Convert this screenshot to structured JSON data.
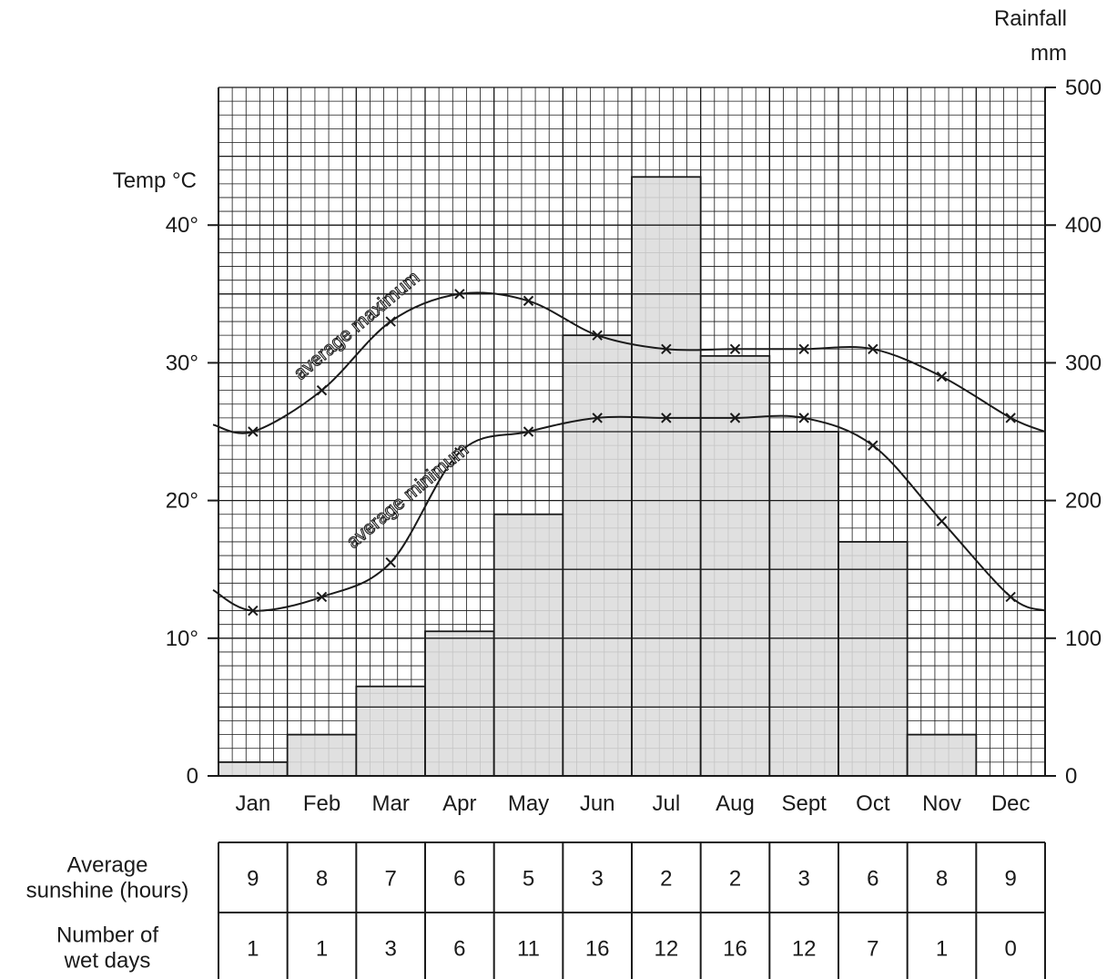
{
  "chart_data": {
    "type": "bar",
    "categories": [
      "Jan",
      "Feb",
      "Mar",
      "Apr",
      "May",
      "Jun",
      "Jul",
      "Aug",
      "Sept",
      "Oct",
      "Nov",
      "Dec"
    ],
    "rainfall": {
      "axis_title_line1": "Rainfall",
      "axis_title_line2": "mm",
      "ylim": [
        0,
        500
      ],
      "ticks": [
        "0",
        "100",
        "200",
        "300",
        "400",
        "500"
      ],
      "values": [
        10,
        30,
        65,
        105,
        190,
        320,
        435,
        305,
        250,
        170,
        30,
        0
      ],
      "fill": "#dcdcdc"
    },
    "temperature": {
      "axis_title": "Temp °C",
      "ylim": [
        0,
        50
      ],
      "ticks": [
        "0",
        "10°",
        "20°",
        "30°",
        "40°"
      ],
      "series": [
        {
          "name": "average maximum",
          "values": [
            25,
            28,
            33,
            35,
            34.5,
            32,
            31,
            31,
            31,
            31,
            29,
            26
          ]
        },
        {
          "name": "average minimum",
          "values": [
            12,
            13,
            15.5,
            23.5,
            25,
            26,
            26,
            26,
            26,
            24,
            18.5,
            13
          ]
        }
      ]
    },
    "grid": true
  },
  "table": {
    "rows": [
      {
        "label_line1": "Average",
        "label_line2": "sunshine (hours)",
        "values": [
          "9",
          "8",
          "7",
          "6",
          "5",
          "3",
          "2",
          "2",
          "3",
          "6",
          "8",
          "9"
        ]
      },
      {
        "label_line1": "Number of",
        "label_line2": "wet days",
        "values": [
          "1",
          "1",
          "3",
          "6",
          "11",
          "16",
          "12",
          "16",
          "12",
          "7",
          "1",
          "0"
        ]
      }
    ]
  },
  "colors": {
    "ink": "#1a1a1a",
    "bar_fill": "#dcdcdc",
    "background": "#ffffff"
  }
}
